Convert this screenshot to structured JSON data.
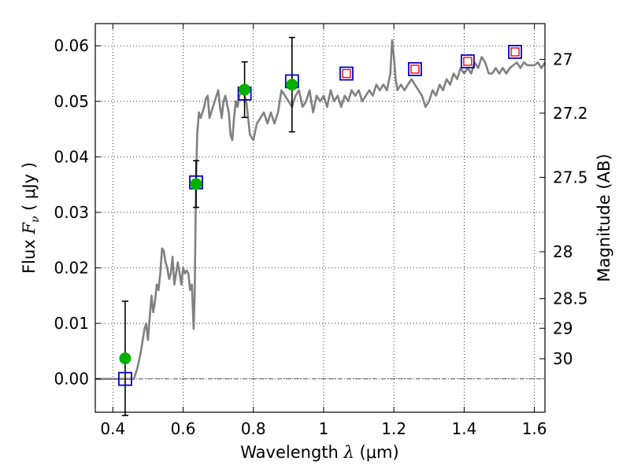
{
  "chart_data": {
    "type": "line",
    "title": "",
    "xlabel": {
      "prefix": "Wavelength  ",
      "symbol": "λ",
      "unit": " (μm)"
    },
    "ylabel": {
      "prefix": "Flux  ",
      "symbol": "F",
      "sub": "ν",
      "unit": "  ( μJy )"
    },
    "y2label": "Magnitude (AB)",
    "xlim": [
      0.35,
      1.63
    ],
    "ylim": [
      -0.006,
      0.064
    ],
    "grid": true,
    "x_ticks": [
      {
        "value": 0.4,
        "label": "0.4"
      },
      {
        "value": 0.6,
        "label": "0.6"
      },
      {
        "value": 0.8,
        "label": "0.8"
      },
      {
        "value": 1.0,
        "label": "1"
      },
      {
        "value": 1.2,
        "label": "1.2"
      },
      {
        "value": 1.4,
        "label": "1.4"
      },
      {
        "value": 1.6,
        "label": "1.6"
      }
    ],
    "y_ticks": [
      {
        "value": 0.0,
        "label": "0.00"
      },
      {
        "value": 0.01,
        "label": "0.01"
      },
      {
        "value": 0.02,
        "label": "0.02"
      },
      {
        "value": 0.03,
        "label": "0.03"
      },
      {
        "value": 0.04,
        "label": "0.04"
      },
      {
        "value": 0.05,
        "label": "0.05"
      },
      {
        "value": 0.06,
        "label": "0.06"
      }
    ],
    "y2_ticks": [
      {
        "mag": 27,
        "label": "27"
      },
      {
        "mag": 27.2,
        "label": "27.2"
      },
      {
        "mag": 27.5,
        "label": "27.5"
      },
      {
        "mag": 28,
        "label": "28"
      },
      {
        "mag": 28.5,
        "label": "28.5"
      },
      {
        "mag": 29,
        "label": "29"
      },
      {
        "mag": 30,
        "label": "30"
      }
    ],
    "model_spectrum": {
      "color": "#808080",
      "points": [
        [
          0.35,
          0.0
        ],
        [
          0.46,
          0.0
        ],
        [
          0.47,
          0.002
        ],
        [
          0.48,
          0.005
        ],
        [
          0.49,
          0.009
        ],
        [
          0.495,
          0.01
        ],
        [
          0.5,
          0.007
        ],
        [
          0.505,
          0.011
        ],
        [
          0.51,
          0.015
        ],
        [
          0.515,
          0.012
        ],
        [
          0.52,
          0.014
        ],
        [
          0.525,
          0.017
        ],
        [
          0.53,
          0.016
        ],
        [
          0.535,
          0.019
        ],
        [
          0.54,
          0.0235
        ],
        [
          0.545,
          0.023
        ],
        [
          0.55,
          0.021
        ],
        [
          0.555,
          0.02
        ],
        [
          0.56,
          0.018
        ],
        [
          0.565,
          0.019
        ],
        [
          0.57,
          0.022
        ],
        [
          0.575,
          0.017
        ],
        [
          0.58,
          0.019
        ],
        [
          0.585,
          0.021
        ],
        [
          0.59,
          0.019
        ],
        [
          0.595,
          0.017
        ],
        [
          0.6,
          0.02
        ],
        [
          0.605,
          0.019
        ],
        [
          0.61,
          0.0195
        ],
        [
          0.615,
          0.019
        ],
        [
          0.62,
          0.016
        ],
        [
          0.625,
          0.017
        ],
        [
          0.63,
          0.009
        ],
        [
          0.633,
          0.015
        ],
        [
          0.637,
          0.036
        ],
        [
          0.64,
          0.044
        ],
        [
          0.645,
          0.048
        ],
        [
          0.65,
          0.047
        ],
        [
          0.66,
          0.049
        ],
        [
          0.665,
          0.0505
        ],
        [
          0.67,
          0.051
        ],
        [
          0.675,
          0.047
        ],
        [
          0.68,
          0.048
        ],
        [
          0.69,
          0.05
        ],
        [
          0.7,
          0.052
        ],
        [
          0.705,
          0.049
        ],
        [
          0.71,
          0.047
        ],
        [
          0.715,
          0.05
        ],
        [
          0.72,
          0.051
        ],
        [
          0.73,
          0.048
        ],
        [
          0.735,
          0.044
        ],
        [
          0.74,
          0.043
        ],
        [
          0.745,
          0.047
        ],
        [
          0.75,
          0.05
        ],
        [
          0.755,
          0.049
        ],
        [
          0.76,
          0.051
        ],
        [
          0.77,
          0.052
        ],
        [
          0.78,
          0.05
        ],
        [
          0.785,
          0.047
        ],
        [
          0.79,
          0.044
        ],
        [
          0.8,
          0.043
        ],
        [
          0.81,
          0.046
        ],
        [
          0.82,
          0.047
        ],
        [
          0.83,
          0.048
        ],
        [
          0.84,
          0.046
        ],
        [
          0.85,
          0.048
        ],
        [
          0.86,
          0.046
        ],
        [
          0.87,
          0.048
        ],
        [
          0.88,
          0.052
        ],
        [
          0.89,
          0.051
        ],
        [
          0.9,
          0.05
        ],
        [
          0.91,
          0.049
        ],
        [
          0.92,
          0.051
        ],
        [
          0.93,
          0.052
        ],
        [
          0.94,
          0.049
        ],
        [
          0.95,
          0.05
        ],
        [
          0.96,
          0.052
        ],
        [
          0.97,
          0.048
        ],
        [
          0.98,
          0.051
        ],
        [
          0.99,
          0.05
        ],
        [
          1.0,
          0.051
        ],
        [
          1.01,
          0.049
        ],
        [
          1.02,
          0.052
        ],
        [
          1.03,
          0.05
        ],
        [
          1.04,
          0.051
        ],
        [
          1.05,
          0.049
        ],
        [
          1.06,
          0.051
        ],
        [
          1.07,
          0.05
        ],
        [
          1.08,
          0.052
        ],
        [
          1.09,
          0.051
        ],
        [
          1.1,
          0.052
        ],
        [
          1.11,
          0.05
        ],
        [
          1.12,
          0.051
        ],
        [
          1.13,
          0.052
        ],
        [
          1.14,
          0.051
        ],
        [
          1.15,
          0.053
        ],
        [
          1.16,
          0.052
        ],
        [
          1.17,
          0.053
        ],
        [
          1.18,
          0.052
        ],
        [
          1.19,
          0.055
        ],
        [
          1.195,
          0.061
        ],
        [
          1.2,
          0.058
        ],
        [
          1.205,
          0.054
        ],
        [
          1.21,
          0.052
        ],
        [
          1.22,
          0.053
        ],
        [
          1.23,
          0.052
        ],
        [
          1.24,
          0.053
        ],
        [
          1.25,
          0.054
        ],
        [
          1.26,
          0.053
        ],
        [
          1.27,
          0.052
        ],
        [
          1.28,
          0.051
        ],
        [
          1.29,
          0.049
        ],
        [
          1.3,
          0.05
        ],
        [
          1.31,
          0.052
        ],
        [
          1.32,
          0.051
        ],
        [
          1.33,
          0.053
        ],
        [
          1.34,
          0.052
        ],
        [
          1.35,
          0.054
        ],
        [
          1.36,
          0.053
        ],
        [
          1.37,
          0.055
        ],
        [
          1.38,
          0.054
        ],
        [
          1.39,
          0.056
        ],
        [
          1.4,
          0.055
        ],
        [
          1.41,
          0.056
        ],
        [
          1.42,
          0.055
        ],
        [
          1.43,
          0.057
        ],
        [
          1.44,
          0.056
        ],
        [
          1.45,
          0.058
        ],
        [
          1.46,
          0.057
        ],
        [
          1.47,
          0.055
        ],
        [
          1.48,
          0.055
        ],
        [
          1.49,
          0.056
        ],
        [
          1.5,
          0.055
        ],
        [
          1.51,
          0.056
        ],
        [
          1.52,
          0.055
        ],
        [
          1.53,
          0.056
        ],
        [
          1.54,
          0.0565
        ],
        [
          1.55,
          0.057
        ],
        [
          1.56,
          0.056
        ],
        [
          1.57,
          0.057
        ],
        [
          1.58,
          0.0565
        ],
        [
          1.59,
          0.0565
        ],
        [
          1.6,
          0.0565
        ],
        [
          1.61,
          0.057
        ],
        [
          1.62,
          0.056
        ],
        [
          1.63,
          0.057
        ]
      ]
    },
    "observed": {
      "color": "#00b000",
      "points": [
        {
          "x": 0.435,
          "y": 0.0037,
          "err": 0.0103
        },
        {
          "x": 0.637,
          "y": 0.0351,
          "err": 0.0042
        },
        {
          "x": 0.775,
          "y": 0.0521,
          "err": 0.005
        },
        {
          "x": 0.91,
          "y": 0.053,
          "err": 0.0085
        }
      ]
    },
    "model_photometry": {
      "color": "#0000cc",
      "points": [
        {
          "x": 0.435,
          "y": 0.0
        },
        {
          "x": 0.637,
          "y": 0.0354
        },
        {
          "x": 0.775,
          "y": 0.0514
        },
        {
          "x": 0.91,
          "y": 0.0536
        },
        {
          "x": 1.065,
          "y": 0.055
        },
        {
          "x": 1.26,
          "y": 0.0558
        },
        {
          "x": 1.41,
          "y": 0.0572
        },
        {
          "x": 1.545,
          "y": 0.0589
        }
      ]
    },
    "predicted_nir": {
      "color": "#ff0000",
      "points": [
        {
          "x": 1.065,
          "y": 0.055
        },
        {
          "x": 1.26,
          "y": 0.0558
        },
        {
          "x": 1.41,
          "y": 0.0572
        },
        {
          "x": 1.545,
          "y": 0.0589
        }
      ]
    }
  }
}
